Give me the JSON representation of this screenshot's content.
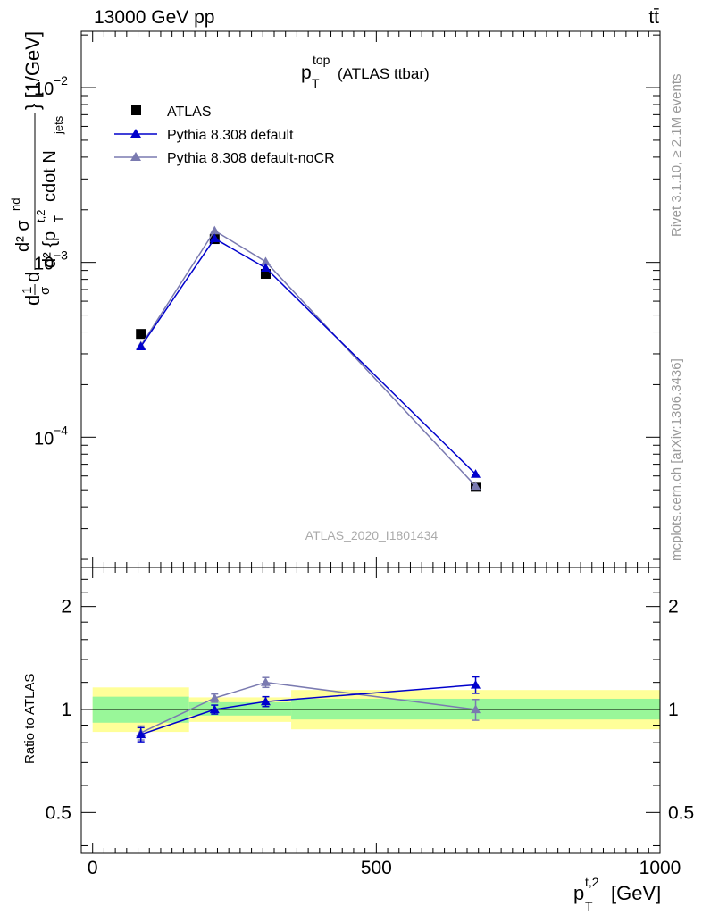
{
  "header": {
    "left": "13000 GeV pp",
    "right": "tt̄"
  },
  "side_labels": {
    "rivet": "Rivet 3.1.10, ≥ 2.1M events",
    "mcplots": "mcplots.cern.ch [arXiv:1306.3436]"
  },
  "title": {
    "main": "p",
    "sup": "top",
    "sub": "T",
    "suffix": "(ATLAS ttbar)"
  },
  "analysis_tag": "ATLAS_2020_I1801434",
  "axes": {
    "ylabel_main": "d¹d/σd²σ^{nd} {p_T^{t,2} cdot N_jets} [1/GeV]",
    "ylabel_ratio": "Ratio to ATLAS",
    "xlabel": "p_T^{t,2} [GeV]",
    "ylabel_main_parts": {
      "d1": "d",
      "frac1_num": "1",
      "frac1_den": "σ",
      "d2": "d",
      "frac2_num": "d² σ",
      "frac2_num_sup": "nd",
      "frac2_den": "d² {p",
      "frac2_den_sup": "t,2",
      "frac2_den_sub": "T",
      "frac2_den_tail": " cdot N",
      "frac2_den_tail_sub": "jets",
      "brace_close": "} [1/GeV]"
    },
    "xlabel_parts": {
      "p": "p",
      "sup": "t,2",
      "sub": "T",
      "unit": "[GeV]"
    }
  },
  "chart_data": [
    {
      "type": "scatter",
      "panel": "main",
      "y_scale": "log",
      "xlim": [
        -20,
        1000
      ],
      "ylim": [
        1.8e-05,
        0.021
      ],
      "x_ticks": [
        0,
        500,
        1000
      ],
      "y_tick_labels": [
        {
          "value": 0.0001,
          "base": "10",
          "exp": "−4"
        },
        {
          "value": 0.001,
          "base": "10",
          "exp": "−3"
        },
        {
          "value": 0.01,
          "base": "10",
          "exp": "−2"
        }
      ],
      "legend_position": "top-left",
      "series": [
        {
          "name": "ATLAS",
          "color": "#000000",
          "marker": "square",
          "points": [
            {
              "x": 85,
              "y": 0.00039
            },
            {
              "x": 215,
              "y": 0.00136
            },
            {
              "x": 305,
              "y": 0.00086
            },
            {
              "x": 675,
              "y": 5.2e-05
            }
          ]
        },
        {
          "name": "Pythia 8.308 default",
          "color": "#0000cc",
          "marker": "triangle",
          "points": [
            {
              "x": 85,
              "y": 0.00033
            },
            {
              "x": 215,
              "y": 0.00137
            },
            {
              "x": 305,
              "y": 0.00093
            },
            {
              "x": 675,
              "y": 6.15e-05
            }
          ]
        },
        {
          "name": "Pythia 8.308 default-noCR",
          "color": "#7a7ab0",
          "marker": "triangle",
          "points": [
            {
              "x": 85,
              "y": 0.000334
            },
            {
              "x": 215,
              "y": 0.00152
            },
            {
              "x": 305,
              "y": 0.00101
            },
            {
              "x": 675,
              "y": 5.25e-05
            }
          ]
        }
      ]
    },
    {
      "type": "scatter",
      "panel": "ratio",
      "y_scale": "log",
      "xlim": [
        -20,
        1000
      ],
      "ylim": [
        0.38,
        2.6
      ],
      "x_ticks": [
        0,
        500,
        1000
      ],
      "x_tick_labels": [
        "0",
        "500",
        "1000"
      ],
      "y_ticks": [
        0.5,
        1,
        2
      ],
      "y_tick_labels": [
        "0.5",
        "1",
        "2"
      ],
      "uncertainty_bands": [
        {
          "x0": 0,
          "x1": 170,
          "stat": [
            0.915,
            1.09
          ],
          "total": [
            0.86,
            1.16
          ]
        },
        {
          "x0": 170,
          "x1": 350,
          "stat": [
            0.96,
            1.05
          ],
          "total": [
            0.92,
            1.085
          ]
        },
        {
          "x0": 350,
          "x1": 1000,
          "stat": [
            0.935,
            1.075
          ],
          "total": [
            0.875,
            1.14
          ]
        }
      ],
      "band_colors": {
        "stat": "#99f799",
        "total": "#ffff99"
      },
      "series": [
        {
          "name": "Pythia 8.308 default",
          "color": "#0000cc",
          "points": [
            {
              "x": 85,
              "y": 0.845,
              "err": 0.04
            },
            {
              "x": 215,
              "y": 1.0,
              "err": 0.03
            },
            {
              "x": 305,
              "y": 1.055,
              "err": 0.035
            },
            {
              "x": 675,
              "y": 1.18,
              "err": 0.065
            }
          ]
        },
        {
          "name": "Pythia 8.308 default-noCR",
          "color": "#7a7ab0",
          "points": [
            {
              "x": 85,
              "y": 0.855,
              "err": 0.04
            },
            {
              "x": 215,
              "y": 1.08,
              "err": 0.03
            },
            {
              "x": 305,
              "y": 1.2,
              "err": 0.04
            },
            {
              "x": 675,
              "y": 1.0,
              "err": 0.07
            }
          ]
        }
      ]
    }
  ]
}
